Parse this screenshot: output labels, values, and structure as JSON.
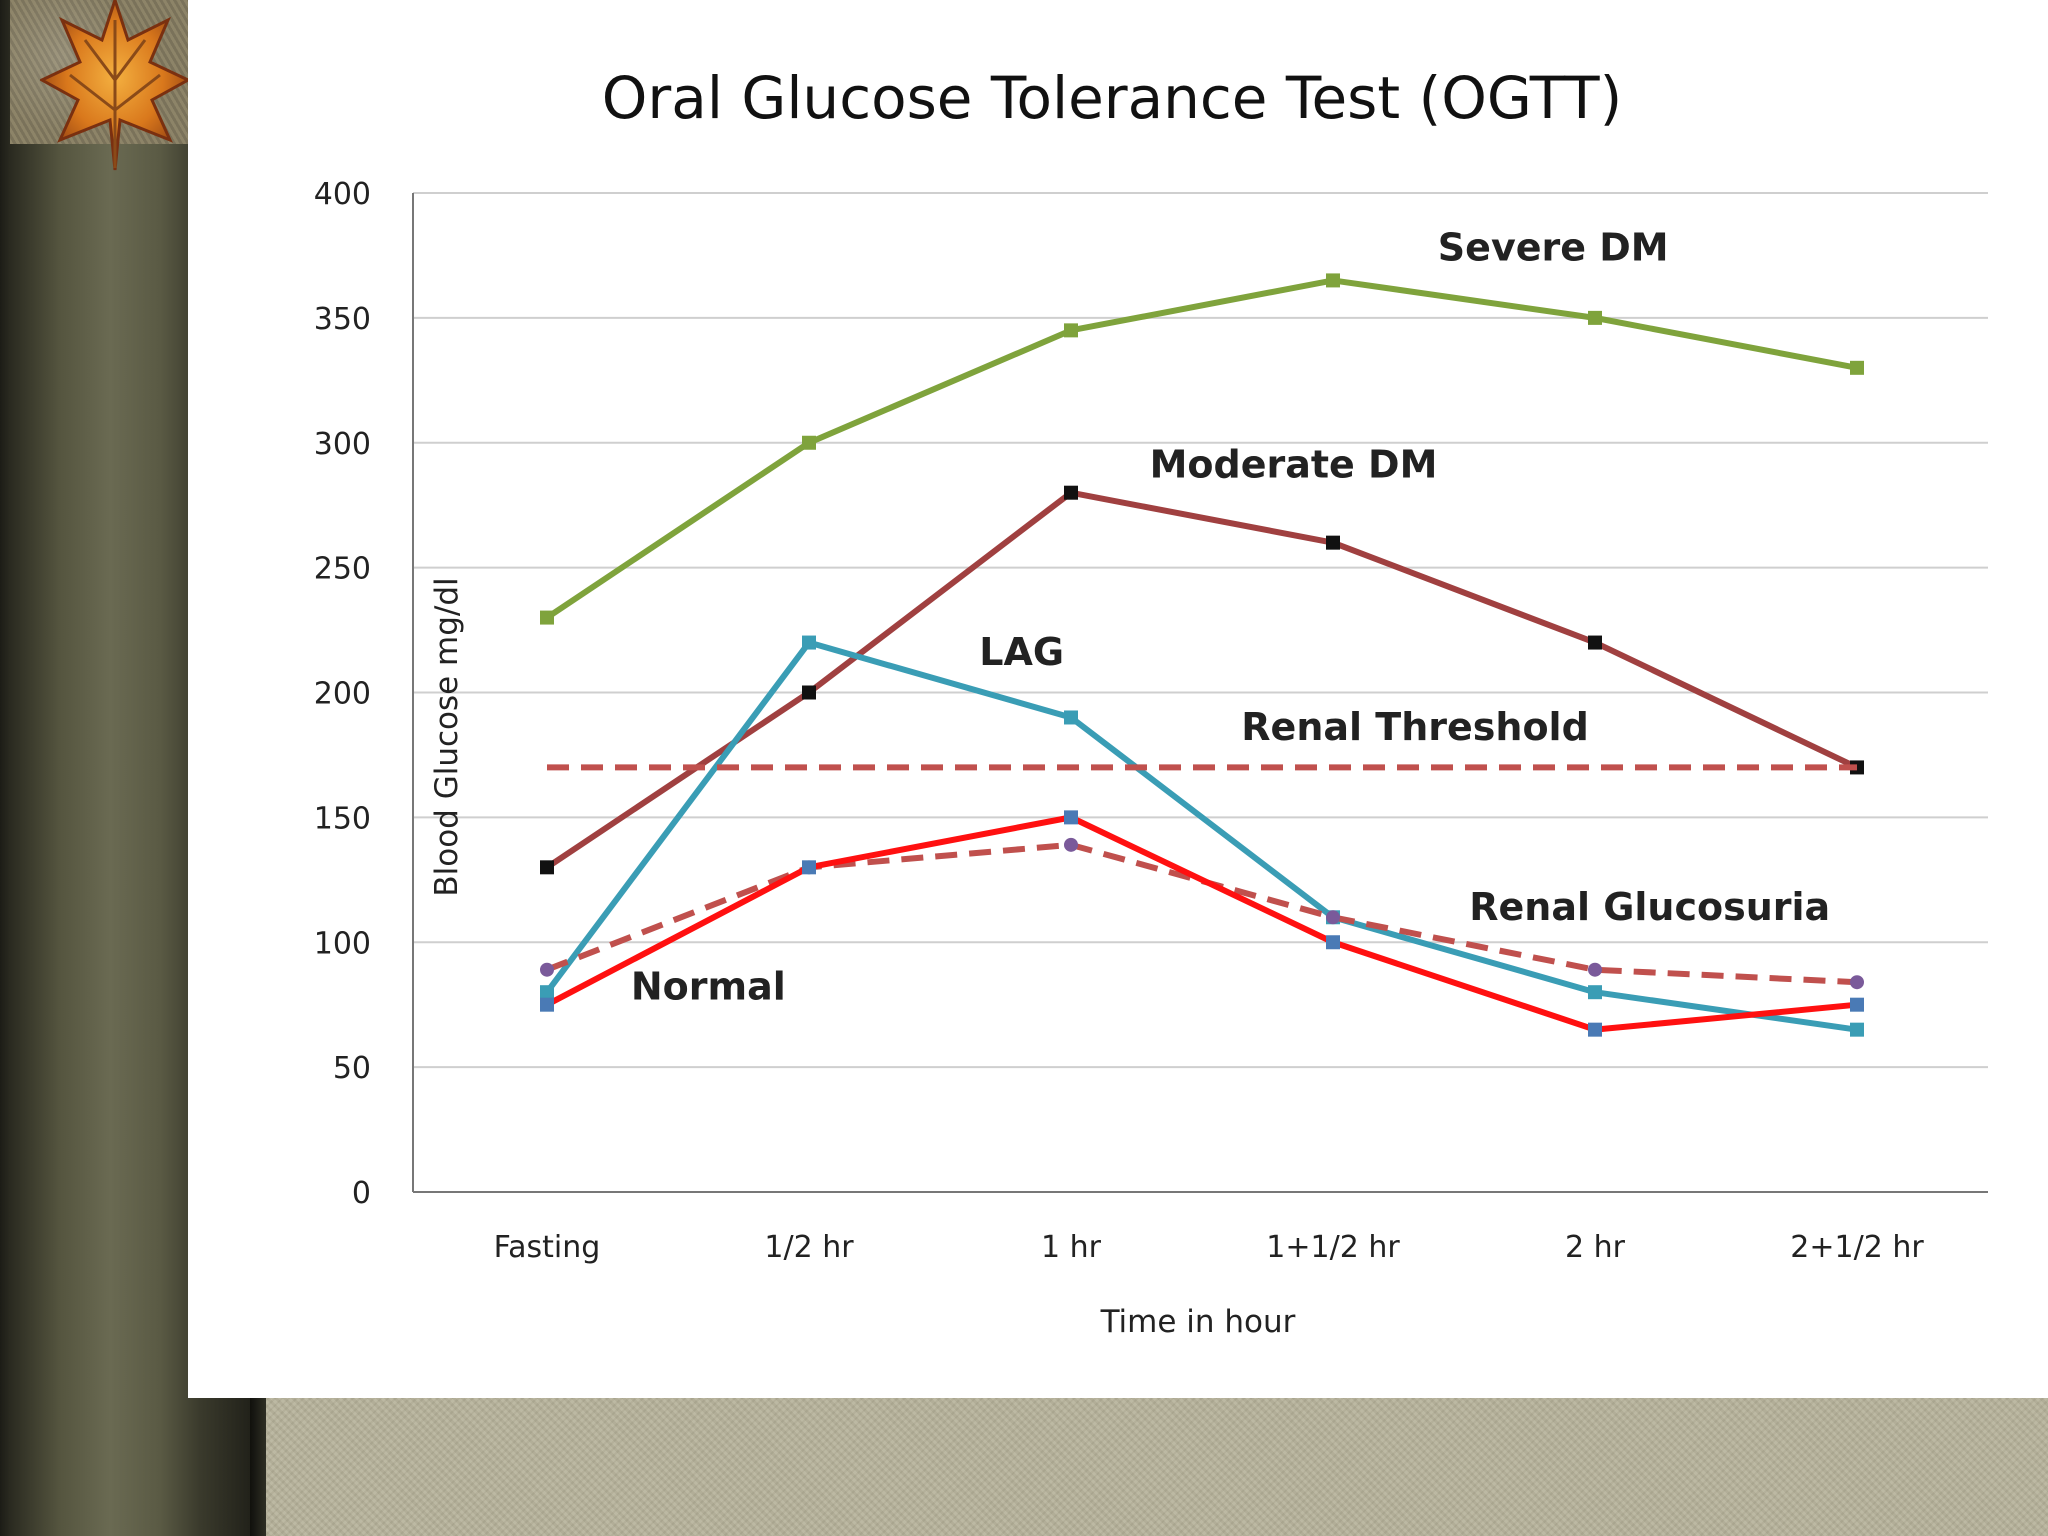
{
  "chart_data": {
    "type": "line",
    "title": "Oral Glucose Tolerance Test (OGTT)",
    "xlabel": "Time in hour",
    "ylabel": "Blood  Glucose  mg/dl",
    "categories": [
      "Fasting",
      "1/2 hr",
      "1 hr",
      "1+1/2 hr",
      "2 hr",
      "2+1/2 hr"
    ],
    "ylim": [
      0,
      400
    ],
    "yticks": [
      0,
      50,
      100,
      150,
      200,
      250,
      300,
      350,
      400
    ],
    "grid": "horizontal",
    "legend": "none",
    "series": [
      {
        "name": "Severe DM",
        "values": [
          230,
          300,
          345,
          365,
          350,
          330
        ],
        "color": "#7fa33c",
        "dashed": false,
        "marker": "square",
        "marker_color": "#7fa33c"
      },
      {
        "name": "Moderate DM",
        "values": [
          130,
          200,
          280,
          260,
          220,
          170
        ],
        "color": "#a04040",
        "dashed": false,
        "marker": "square",
        "marker_color": "#111111"
      },
      {
        "name": "LAG",
        "values": [
          80,
          220,
          190,
          110,
          80,
          65
        ],
        "color": "#3a9db5",
        "dashed": false,
        "marker": "square",
        "marker_color": "#3a9db5"
      },
      {
        "name": "Renal Threshold",
        "values": [
          170,
          170,
          170,
          170,
          170,
          170
        ],
        "color": "#c0504d",
        "dashed": true,
        "marker": "none",
        "marker_color": "#c0504d"
      },
      {
        "name": "Renal Glucosuria",
        "values": [
          89,
          130,
          139,
          110,
          89,
          84
        ],
        "color": "#c0504d",
        "dashed": true,
        "marker": "circle",
        "marker_color": "#7a5a9a"
      },
      {
        "name": "Normal",
        "values": [
          75,
          130,
          150,
          100,
          65,
          75
        ],
        "color": "#ff1010",
        "dashed": false,
        "marker": "square",
        "marker_color": "#4a7ab5"
      }
    ],
    "annotations": [
      {
        "text": "Severe DM",
        "x": 3.4,
        "y": 373
      },
      {
        "text": "Moderate DM",
        "x": 2.3,
        "y": 286
      },
      {
        "text": "LAG",
        "x": 1.65,
        "y": 211
      },
      {
        "text": "Renal Threshold",
        "x": 2.65,
        "y": 181
      },
      {
        "text": "Renal Glucosuria",
        "x": 3.52,
        "y": 109
      },
      {
        "text": "Normal",
        "x": 0.32,
        "y": 77
      }
    ]
  }
}
